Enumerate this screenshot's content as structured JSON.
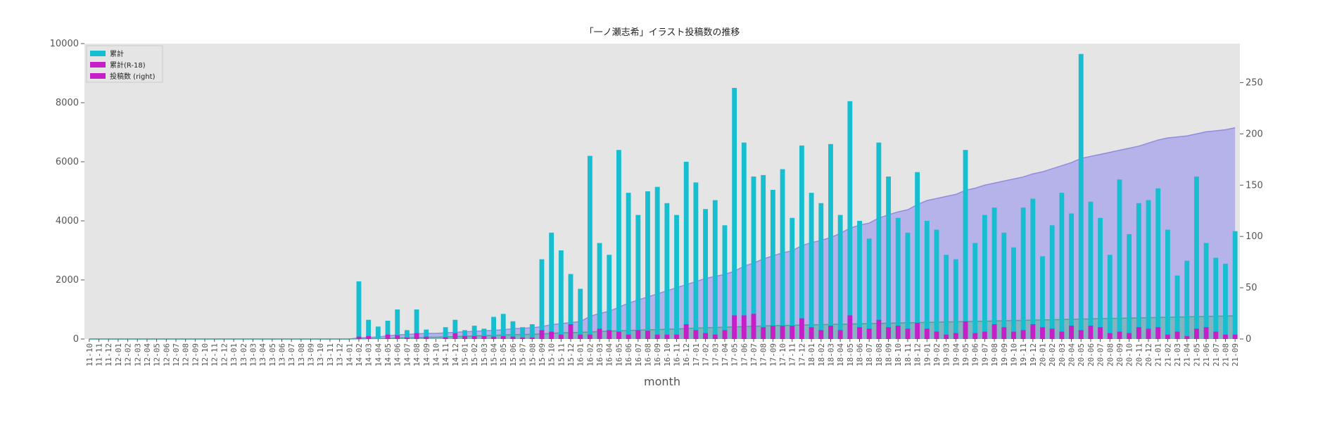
{
  "chart_data": {
    "type": "bar",
    "title": "「一ノ瀬志希」イラスト投稿数の推移",
    "xlabel": "month",
    "ylabel": "",
    "ylim": [
      0,
      10000
    ],
    "y2lim": [
      0,
      288
    ],
    "yticks": [
      0,
      2000,
      4000,
      6000,
      8000,
      10000
    ],
    "y2ticks": [
      0,
      50,
      100,
      150,
      200,
      250
    ],
    "grid": false,
    "legend_position": "top-left",
    "colors": {
      "background": "#e5e5e5",
      "total": "#17becf",
      "r18": "#c71fc7",
      "area_total": "#aeaaec",
      "area_total_line": "#8f8ce0",
      "area_r18": "#5fb39c",
      "area_r18_line": "#45a98c"
    },
    "categories": [
      "11-10",
      "11-11",
      "11-12",
      "12-01",
      "12-02",
      "12-03",
      "12-04",
      "12-05",
      "12-06",
      "12-07",
      "12-08",
      "12-09",
      "12-10",
      "12-11",
      "12-12",
      "13-01",
      "13-02",
      "13-03",
      "13-04",
      "13-05",
      "13-06",
      "13-07",
      "13-08",
      "13-09",
      "13-10",
      "13-11",
      "13-12",
      "14-01",
      "14-02",
      "14-03",
      "14-04",
      "14-05",
      "14-06",
      "14-07",
      "14-08",
      "14-09",
      "14-10",
      "14-11",
      "14-12",
      "15-01",
      "15-02",
      "15-03",
      "15-04",
      "15-05",
      "15-06",
      "15-07",
      "15-08",
      "15-09",
      "15-10",
      "15-11",
      "15-12",
      "16-01",
      "16-02",
      "16-03",
      "16-04",
      "16-05",
      "16-06",
      "16-07",
      "16-08",
      "16-09",
      "16-10",
      "16-11",
      "16-12",
      "17-01",
      "17-02",
      "17-03",
      "17-04",
      "17-05",
      "17-06",
      "17-07",
      "17-08",
      "17-09",
      "17-10",
      "17-11",
      "17-12",
      "18-01",
      "18-02",
      "18-03",
      "18-04",
      "18-05",
      "18-06",
      "18-07",
      "18-08",
      "18-09",
      "18-10",
      "18-11",
      "18-12",
      "19-01",
      "19-02",
      "19-03",
      "19-04",
      "19-05",
      "19-06",
      "19-07",
      "19-08",
      "19-09",
      "19-10",
      "19-11",
      "19-12",
      "20-01",
      "20-02",
      "20-03",
      "20-04",
      "20-05",
      "20-06",
      "20-07",
      "20-08",
      "20-09",
      "20-10",
      "20-11",
      "20-12",
      "21-01",
      "21-02",
      "21-03",
      "21-04",
      "21-05",
      "21-06",
      "21-07",
      "21-08",
      "21-09"
    ],
    "series": [
      {
        "name": "累計",
        "kind": "bar",
        "axis": "left",
        "values": [
          0,
          0,
          0,
          0,
          0,
          0,
          0,
          0,
          0,
          0,
          0,
          0,
          0,
          0,
          0,
          0,
          0,
          0,
          0,
          0,
          0,
          0,
          0,
          0,
          0,
          0,
          0,
          0,
          1950,
          650,
          420,
          620,
          1000,
          300,
          1000,
          320,
          0,
          400,
          650,
          300,
          450,
          350,
          750,
          850,
          600,
          400,
          500,
          2700,
          3600,
          3000,
          2200,
          1700,
          6200,
          3250,
          2850,
          6400,
          4950,
          4200,
          5000,
          5150,
          4600,
          4200,
          6000,
          5300,
          4400,
          4700,
          3850,
          8500,
          6650,
          5500,
          5550,
          5050,
          5750,
          4100,
          6550,
          4950,
          4600,
          6600,
          4200,
          8050,
          4000,
          3400,
          6650,
          5500,
          4100,
          3600,
          5650,
          4000,
          3700,
          2850,
          2700,
          6400,
          3250,
          4200,
          4450,
          3600,
          3100,
          4450,
          4750,
          2800,
          3850,
          4950,
          4250,
          9650,
          4650,
          4100,
          2850,
          5400,
          3550,
          4600,
          4700,
          5100,
          3700,
          2150,
          2650,
          5500,
          3250,
          2750,
          2550,
          3650
        ]
      },
      {
        "name": "累計(R-18)",
        "kind": "bar",
        "axis": "left",
        "values": [
          0,
          0,
          0,
          0,
          0,
          0,
          0,
          0,
          0,
          0,
          0,
          0,
          0,
          0,
          0,
          0,
          0,
          0,
          0,
          0,
          0,
          0,
          0,
          0,
          0,
          0,
          0,
          0,
          80,
          100,
          0,
          150,
          130,
          50,
          200,
          80,
          0,
          60,
          200,
          100,
          100,
          100,
          80,
          100,
          80,
          50,
          50,
          300,
          250,
          150,
          500,
          150,
          150,
          350,
          300,
          250,
          150,
          300,
          280,
          150,
          150,
          150,
          500,
          300,
          200,
          150,
          300,
          800,
          800,
          850,
          400,
          450,
          450,
          450,
          700,
          400,
          300,
          450,
          300,
          800,
          400,
          350,
          650,
          400,
          450,
          350,
          550,
          350,
          250,
          150,
          200,
          600,
          200,
          250,
          500,
          400,
          250,
          300,
          500,
          400,
          350,
          250,
          450,
          300,
          450,
          400,
          200,
          250,
          200,
          400,
          350,
          400,
          150,
          250,
          100,
          350,
          400,
          250,
          150,
          150
        ]
      },
      {
        "name": "投稿数 (right)",
        "kind": "area",
        "axis": "right",
        "values": [
          0,
          0,
          0,
          0,
          0,
          0,
          0,
          0,
          0,
          0,
          0,
          0,
          0,
          0,
          0,
          0,
          0,
          0,
          0,
          0,
          0,
          0,
          0,
          0,
          0,
          0,
          0,
          0,
          1,
          1.5,
          2,
          3,
          4,
          4.5,
          5,
          5.5,
          5.5,
          6,
          6.5,
          7,
          7.5,
          8,
          8.5,
          9,
          10,
          10.5,
          11,
          12,
          14,
          15,
          16,
          17,
          22,
          25,
          27,
          31,
          35,
          38,
          41,
          44,
          47,
          50,
          53,
          56,
          59,
          61,
          63,
          66,
          71,
          74,
          78,
          81,
          84,
          86,
          91,
          94,
          96,
          99,
          103,
          108,
          111,
          113,
          118,
          121,
          124,
          126,
          131,
          135,
          137,
          139,
          141,
          145,
          147,
          150,
          152,
          154,
          156,
          158,
          161,
          163,
          166,
          169,
          172,
          176,
          178,
          180,
          182,
          184,
          186,
          188,
          191,
          194,
          196,
          197,
          198,
          200,
          202,
          203,
          204,
          206
        ]
      },
      {
        "name": "",
        "kind": "area",
        "axis": "right",
        "values": [
          0,
          0,
          0,
          0,
          0,
          0,
          0,
          0,
          0,
          0,
          0,
          0,
          0,
          0,
          0,
          0,
          0,
          0,
          0,
          0,
          0,
          0,
          0,
          0,
          0,
          0,
          0,
          0,
          0.2,
          0.3,
          0.4,
          0.5,
          1,
          1.2,
          1.4,
          1.6,
          1.7,
          2,
          2.4,
          2.7,
          3,
          3.3,
          3.6,
          3.9,
          4.2,
          4.4,
          4.6,
          4.9,
          5.5,
          6,
          6.2,
          6.5,
          6.9,
          7.3,
          7.6,
          8,
          8.3,
          8.6,
          8.9,
          9.2,
          9.5,
          9.8,
          10.2,
          10.6,
          10.9,
          11.2,
          11.5,
          11.8,
          12.1,
          12.4,
          12.7,
          13,
          13.2,
          13.4,
          13.6,
          13.8,
          14,
          14.2,
          14.4,
          14.6,
          14.8,
          15,
          15.2,
          15.4,
          15.6,
          15.8,
          16,
          16.2,
          16.4,
          16.6,
          16.8,
          17,
          17.2,
          17.4,
          17.6,
          17.8,
          18,
          18.2,
          18.4,
          18.6,
          18.8,
          19,
          19.2,
          19.4,
          19.6,
          19.8,
          20,
          20.2,
          20.4,
          20.6,
          20.8,
          21,
          21.2,
          21.4,
          21.6,
          21.8,
          22,
          22.2,
          22.4,
          22.6
        ]
      }
    ],
    "legend": [
      "累計",
      "累計(R-18)",
      "投稿数 (right)"
    ]
  }
}
